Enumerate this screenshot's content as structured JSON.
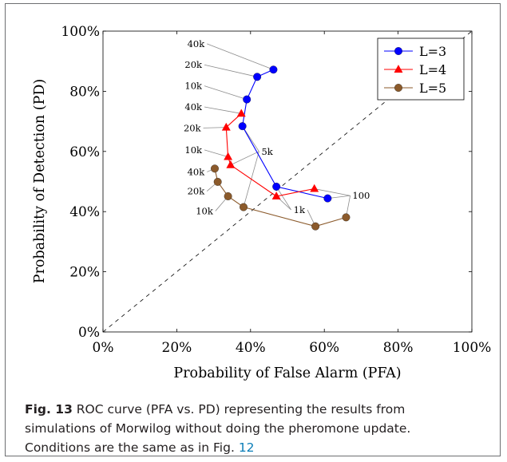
{
  "chart_data": {
    "type": "line",
    "xlabel": "Probability of False Alarm (PFA)",
    "ylabel": "Probability of Detection (PD)",
    "xlim": [
      0,
      100
    ],
    "ylim": [
      0,
      100
    ],
    "x_ticks": [
      "0%",
      "20%",
      "40%",
      "60%",
      "80%",
      "100%"
    ],
    "y_ticks": [
      "0%",
      "20%",
      "40%",
      "60%",
      "80%",
      "100%"
    ],
    "legend_position": "top-right",
    "diagonal_reference": true,
    "series": [
      {
        "name": "L=3",
        "color": "#0000ff",
        "marker": "circle",
        "points": [
          [
            46.2,
            87.2
          ],
          [
            41.8,
            84.8
          ],
          [
            39.0,
            77.3
          ],
          [
            37.8,
            68.4
          ],
          [
            47.0,
            48.3
          ],
          [
            60.9,
            44.4
          ]
        ]
      },
      {
        "name": "L=4",
        "color": "#ff0000",
        "marker": "triangle",
        "points": [
          [
            37.5,
            72.6
          ],
          [
            33.4,
            68.0
          ],
          [
            33.9,
            58.2
          ],
          [
            34.6,
            55.5
          ],
          [
            47.0,
            45.1
          ],
          [
            57.3,
            47.6
          ]
        ]
      },
      {
        "name": "L=5",
        "color": "#8b5a2b",
        "marker": "circle",
        "points": [
          [
            30.3,
            54.3
          ],
          [
            31.1,
            49.9
          ],
          [
            33.9,
            45.1
          ],
          [
            38.1,
            41.5
          ],
          [
            57.6,
            35.1
          ],
          [
            65.9,
            38.1
          ]
        ]
      }
    ],
    "annotations": [
      {
        "label": "40k",
        "lx": 25.2,
        "ly": 95.8,
        "targets": [
          [
            46.2,
            87.2
          ]
        ]
      },
      {
        "label": "20k",
        "lx": 24.5,
        "ly": 88.8,
        "targets": [
          [
            41.8,
            84.8
          ]
        ]
      },
      {
        "label": "10k",
        "lx": 24.5,
        "ly": 81.8,
        "targets": [
          [
            39.0,
            77.3
          ]
        ]
      },
      {
        "label": "40k",
        "lx": 24.5,
        "ly": 74.8,
        "targets": [
          [
            37.5,
            72.6
          ]
        ]
      },
      {
        "label": "20k",
        "lx": 24.2,
        "ly": 67.8,
        "targets": [
          [
            33.4,
            68.0
          ]
        ]
      },
      {
        "label": "10k",
        "lx": 24.5,
        "ly": 60.5,
        "targets": [
          [
            33.9,
            58.2
          ]
        ]
      },
      {
        "label": "5k",
        "lx": 44.5,
        "ly": 60.0,
        "targets": [
          [
            37.8,
            68.4
          ],
          [
            34.6,
            55.5
          ],
          [
            38.1,
            41.5
          ]
        ]
      },
      {
        "label": "40k",
        "lx": 25.2,
        "ly": 53.2,
        "targets": [
          [
            30.3,
            54.3
          ]
        ]
      },
      {
        "label": "20k",
        "lx": 25.2,
        "ly": 46.8,
        "targets": [
          [
            31.1,
            49.9
          ]
        ]
      },
      {
        "label": "10k",
        "lx": 27.5,
        "ly": 40.2,
        "targets": [
          [
            33.9,
            45.1
          ]
        ]
      },
      {
        "label": "1k",
        "lx": 53.2,
        "ly": 40.6,
        "targets": [
          [
            47.0,
            48.3
          ],
          [
            47.0,
            45.1
          ],
          [
            57.6,
            35.1
          ]
        ]
      },
      {
        "label": "100",
        "lx": 70.0,
        "ly": 45.3,
        "targets": [
          [
            60.9,
            44.4
          ],
          [
            57.3,
            47.6
          ],
          [
            65.9,
            38.1
          ]
        ]
      }
    ]
  },
  "caption": {
    "label": "Fig. 13",
    "text_line1": " ROC curve (PFA vs. PD) representing the results from",
    "text_line2": "simulations of Morwilog without doing the pheromone update.",
    "text_line3_prefix": "Conditions are the same as in Fig. ",
    "ref": "12"
  }
}
